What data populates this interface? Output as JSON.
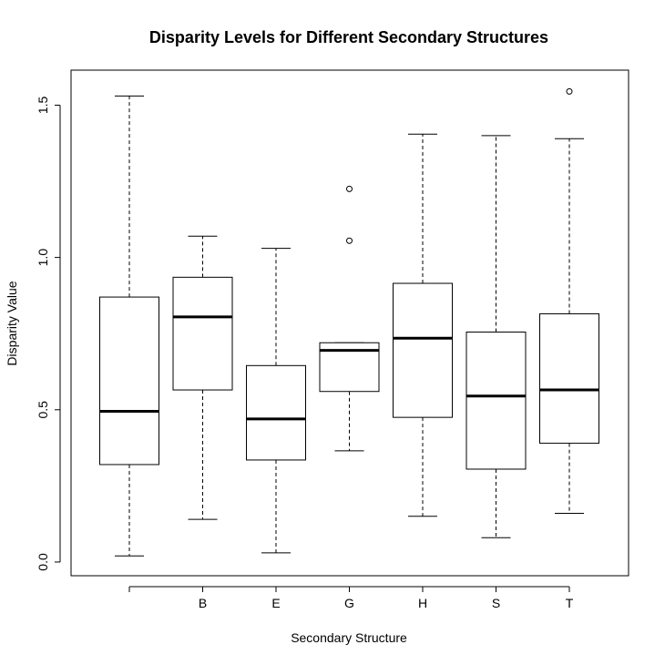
{
  "chart_data": {
    "type": "boxplot",
    "title": "Disparity Levels for Different Secondary Structures",
    "xlabel": "Secondary Structure",
    "ylabel": "Disparity Value",
    "ylim": [
      -0.045,
      1.615
    ],
    "yticks": [
      0.0,
      0.5,
      1.0,
      1.5
    ],
    "ytick_labels": [
      "0.0",
      "0.5",
      "1.0",
      "1.5"
    ],
    "grid": false,
    "legend": "none",
    "categories": [
      "",
      "B",
      "E",
      "G",
      "H",
      "S",
      "T"
    ],
    "boxes": [
      {
        "category": "",
        "whisker_low": 0.02,
        "q1": 0.32,
        "median": 0.495,
        "q3": 0.87,
        "whisker_high": 1.53,
        "outliers": []
      },
      {
        "category": "B",
        "whisker_low": 0.14,
        "q1": 0.565,
        "median": 0.805,
        "q3": 0.935,
        "whisker_high": 1.07,
        "outliers": []
      },
      {
        "category": "E",
        "whisker_low": 0.03,
        "q1": 0.335,
        "median": 0.47,
        "q3": 0.645,
        "whisker_high": 1.03,
        "outliers": []
      },
      {
        "category": "G",
        "whisker_low": 0.365,
        "q1": 0.56,
        "median": 0.695,
        "q3": 0.72,
        "whisker_high": 0.72,
        "outliers": [
          1.055,
          1.225
        ]
      },
      {
        "category": "H",
        "whisker_low": 0.15,
        "q1": 0.475,
        "median": 0.735,
        "q3": 0.915,
        "whisker_high": 1.405,
        "outliers": []
      },
      {
        "category": "S",
        "whisker_low": 0.08,
        "q1": 0.305,
        "median": 0.545,
        "q3": 0.755,
        "whisker_high": 1.4,
        "outliers": []
      },
      {
        "category": "T",
        "whisker_low": 0.16,
        "q1": 0.39,
        "median": 0.565,
        "q3": 0.815,
        "whisker_high": 1.39,
        "outliers": [
          1.545
        ]
      }
    ]
  }
}
